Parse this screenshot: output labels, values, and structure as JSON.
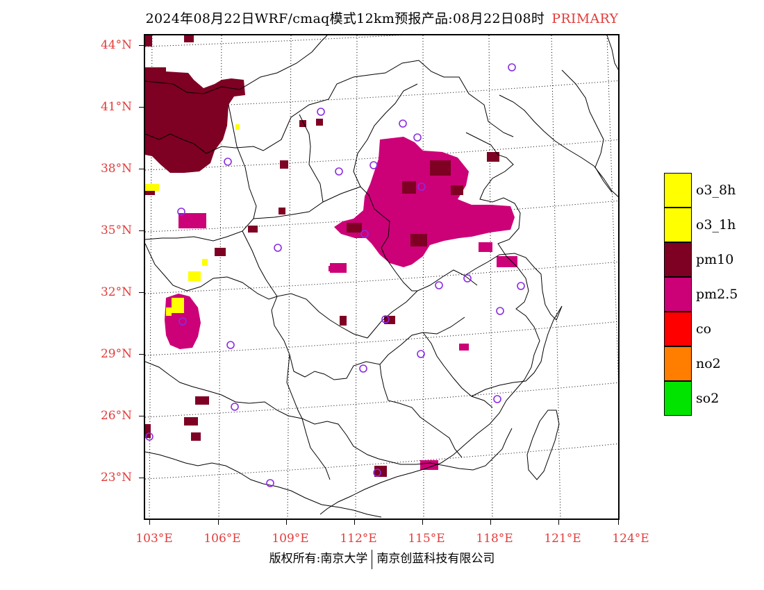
{
  "title": {
    "main": "2024年08月22日WRF/cmaq模式12km预报产品:08月22日08时",
    "product_type": "PRIMARY",
    "product_color": "#e23c3c"
  },
  "axes": {
    "lat_labels": [
      "44°N",
      "41°N",
      "38°N",
      "35°N",
      "32°N",
      "29°N",
      "26°N",
      "23°N"
    ],
    "lon_labels": [
      "103°E",
      "106°E",
      "109°E",
      "112°E",
      "115°E",
      "118°E",
      "121°E",
      "124°E"
    ],
    "label_color": "#e23c3c"
  },
  "legend": [
    {
      "label": "o3_8h",
      "color": "#ffff00"
    },
    {
      "label": "o3_1h",
      "color": "#ffff00"
    },
    {
      "label": "pm10",
      "color": "#7e0023"
    },
    {
      "label": "pm2.5",
      "color": "#cc0077"
    },
    {
      "label": "co",
      "color": "#ff0000"
    },
    {
      "label": "no2",
      "color": "#ff7e00"
    },
    {
      "label": "so2",
      "color": "#00e400"
    }
  ],
  "footer": {
    "left": "版权所有:南京大学",
    "right": "南京创蓝科技有限公司"
  },
  "map_colors": {
    "pm10": "#7e0023",
    "pm25": "#cc0077",
    "o3": "#ffff00",
    "station": "#8a2be2"
  }
}
